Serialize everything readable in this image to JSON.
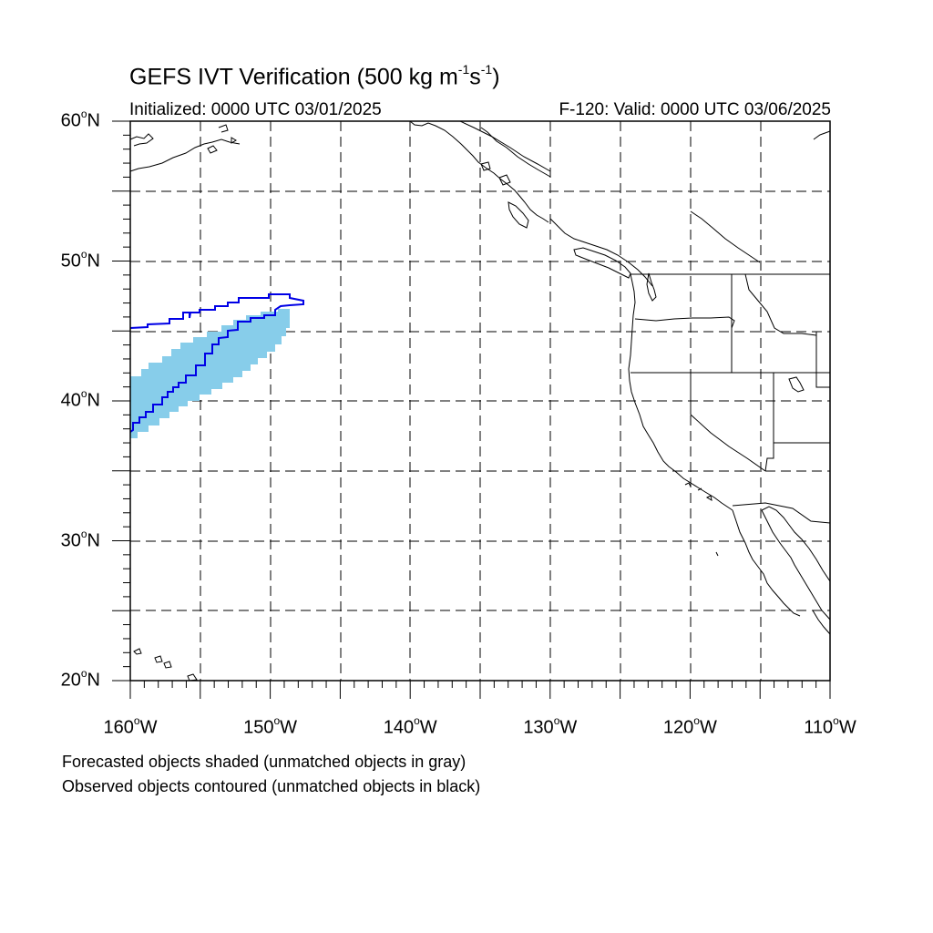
{
  "title": {
    "prefix": "GEFS IVT Verification (500 kg m",
    "exp1": "-1",
    "mid": "s",
    "exp2": "-1",
    "suffix": ")"
  },
  "initialized": "Initialized: 0000 UTC 03/01/2025",
  "forecast_valid": "F-120: Valid: 0000 UTC 03/06/2025",
  "map": {
    "lon_range": [
      -160,
      -110
    ],
    "lat_range": [
      20,
      60
    ],
    "lat_labels": [
      {
        "value": 60,
        "num": "60",
        "deg": "o",
        "hemi": "N"
      },
      {
        "value": 50,
        "num": "50",
        "deg": "o",
        "hemi": "N"
      },
      {
        "value": 40,
        "num": "40",
        "deg": "o",
        "hemi": "N"
      },
      {
        "value": 30,
        "num": "30",
        "deg": "o",
        "hemi": "N"
      },
      {
        "value": 20,
        "num": "20",
        "deg": "o",
        "hemi": "N"
      }
    ],
    "lon_labels": [
      {
        "value": -160,
        "num": "160",
        "deg": "o",
        "hemi": "W"
      },
      {
        "value": -150,
        "num": "150",
        "deg": "o",
        "hemi": "W"
      },
      {
        "value": -140,
        "num": "140",
        "deg": "o",
        "hemi": "W"
      },
      {
        "value": -130,
        "num": "130",
        "deg": "o",
        "hemi": "W"
      },
      {
        "value": -120,
        "num": "120",
        "deg": "o",
        "hemi": "W"
      },
      {
        "value": -110,
        "num": "110",
        "deg": "o",
        "hemi": "W"
      }
    ],
    "gridline_interval_deg": 5,
    "forecast_object_color": "#87cdea",
    "observed_contour_color": "#0000e6"
  },
  "footnotes": [
    "Forecasted objects shaded (unmatched objects in gray)",
    "Observed objects contoured (unmatched objects in black)"
  ]
}
